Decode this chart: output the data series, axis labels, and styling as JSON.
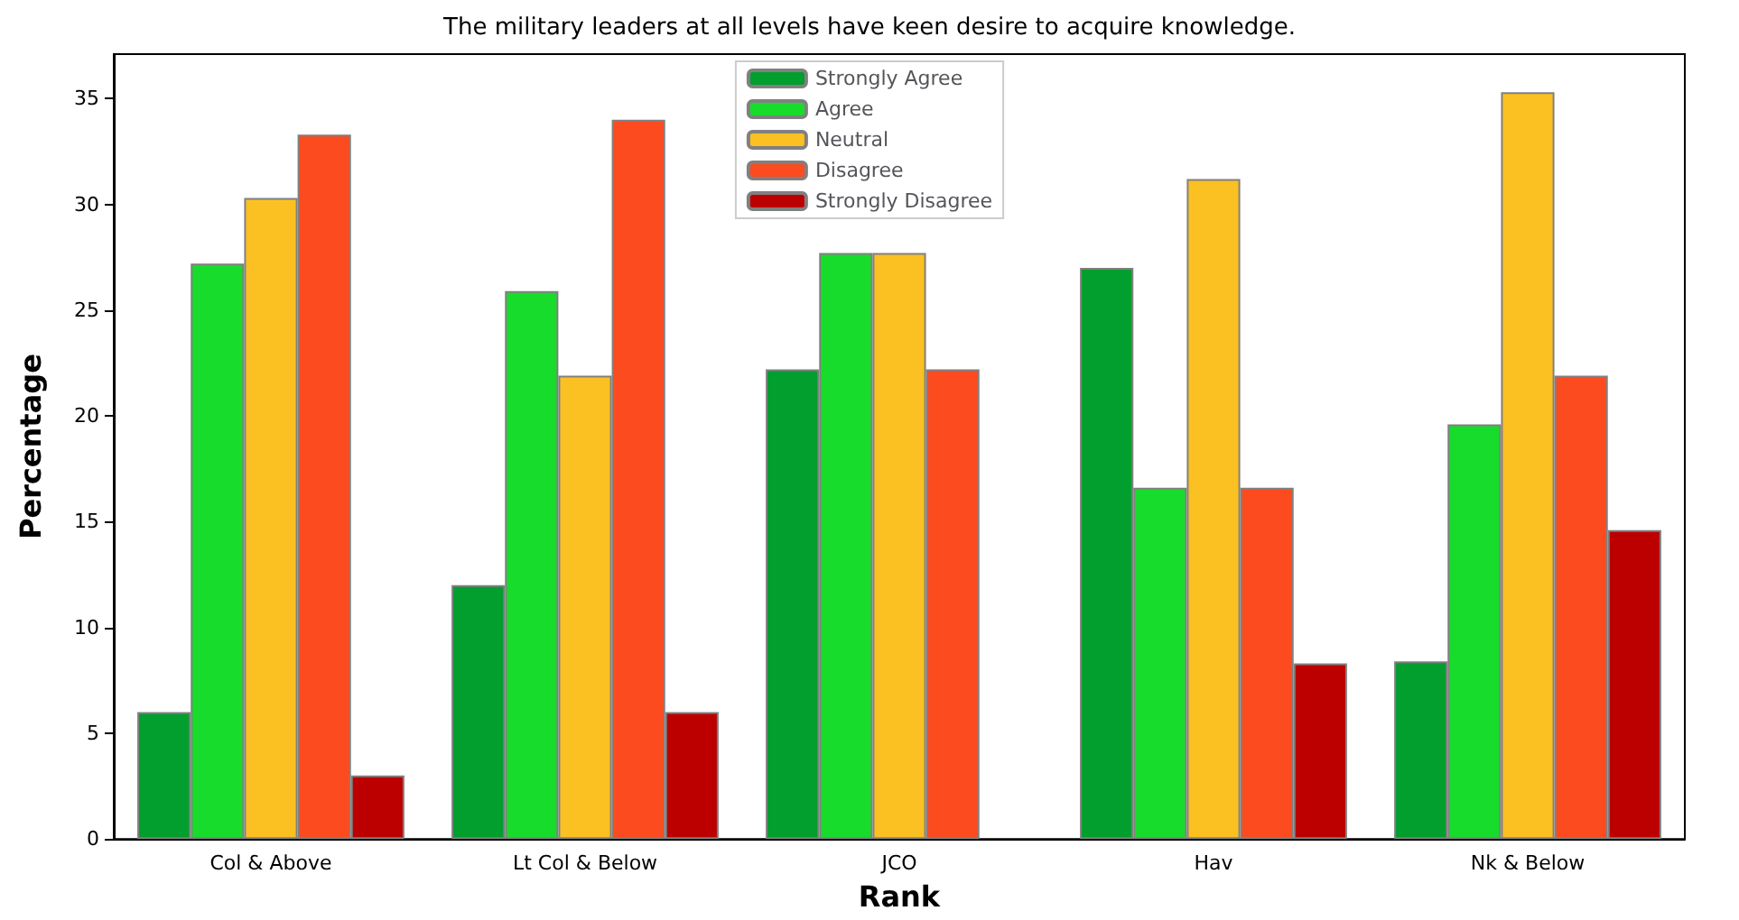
{
  "chart_data": {
    "type": "bar",
    "title": "The military leaders at all levels have keen desire to acquire knowledge.",
    "xlabel": "Rank",
    "ylabel": "Percentage",
    "categories": [
      "Col & Above",
      "Lt Col & Below",
      "JCO",
      "Hav",
      "Nk & Below"
    ],
    "series": [
      {
        "name": "Strongly Agree",
        "color": "#029e2e",
        "values": [
          6.0,
          12.0,
          22.2,
          27.0,
          8.4
        ]
      },
      {
        "name": "Agree",
        "color": "#18dc2b",
        "values": [
          27.2,
          25.9,
          27.7,
          16.6,
          19.6
        ]
      },
      {
        "name": "Neutral",
        "color": "#fbc021",
        "values": [
          30.3,
          21.9,
          27.7,
          31.2,
          35.3
        ]
      },
      {
        "name": "Disagree",
        "color": "#fd4b20",
        "values": [
          33.3,
          34.0,
          22.2,
          16.6,
          21.9
        ]
      },
      {
        "name": "Strongly Disagree",
        "color": "#bc0000",
        "values": [
          3.0,
          6.0,
          null,
          8.3,
          14.6
        ]
      }
    ],
    "ylim": [
      0,
      37.1
    ],
    "yticks": [
      0,
      5,
      10,
      15,
      20,
      25,
      30,
      35
    ],
    "grid": false,
    "legend": "top"
  }
}
